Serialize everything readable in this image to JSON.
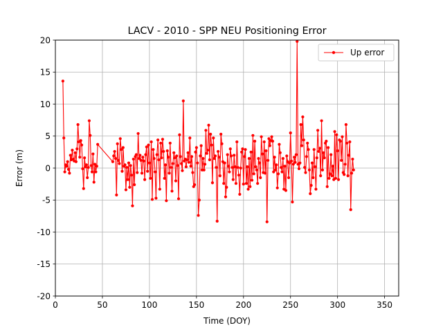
{
  "chart_data": {
    "type": "line",
    "title": "LACV - 2010 - SPP NEU Positioning Error",
    "xlabel": "Time (DOY)",
    "ylabel": "Error (m)",
    "xlim": [
      0,
      365
    ],
    "ylim": [
      -20,
      20
    ],
    "xticks": [
      0,
      50,
      100,
      150,
      200,
      250,
      300,
      350
    ],
    "yticks": [
      -20,
      -15,
      -10,
      -5,
      0,
      5,
      10,
      15,
      20
    ],
    "grid": true,
    "legend_position": "top-right",
    "series": [
      {
        "name": "Up error",
        "color": "#ff0000",
        "marker": "circle",
        "points": [
          [
            8,
            13.6
          ],
          [
            9,
            4.7
          ],
          [
            10,
            -0.6
          ],
          [
            11,
            0.5
          ],
          [
            12,
            0.3
          ],
          [
            13,
            1.0
          ],
          [
            14,
            -0.2
          ],
          [
            15,
            -0.8
          ],
          [
            16,
            2.0
          ],
          [
            17,
            1.3
          ],
          [
            18,
            2.8
          ],
          [
            19,
            1.4
          ],
          [
            20,
            1.1
          ],
          [
            21,
            2.4
          ],
          [
            22,
            1.0
          ],
          [
            23,
            3.0
          ],
          [
            24,
            6.8
          ],
          [
            25,
            4.1
          ],
          [
            26,
            1.7
          ],
          [
            27,
            4.3
          ],
          [
            28,
            3.6
          ],
          [
            29,
            -0.1
          ],
          [
            30,
            -3.2
          ],
          [
            31,
            1.6
          ],
          [
            32,
            0.2
          ],
          [
            33,
            0.5
          ],
          [
            34,
            -1.5
          ],
          [
            35,
            0.1
          ],
          [
            36,
            7.4
          ],
          [
            37,
            5.1
          ],
          [
            38,
            0.4
          ],
          [
            39,
            -0.6
          ],
          [
            40,
            2.2
          ],
          [
            41,
            -2.2
          ],
          [
            42,
            0.6
          ],
          [
            43,
            -0.6
          ],
          [
            44,
            0.3
          ],
          [
            45,
            3.7
          ],
          [
            61,
            1.0
          ],
          [
            62,
            1.9
          ],
          [
            63,
            2.6
          ],
          [
            64,
            1.5
          ],
          [
            65,
            -4.2
          ],
          [
            66,
            3.8
          ],
          [
            67,
            1.2
          ],
          [
            68,
            0.7
          ],
          [
            69,
            4.6
          ],
          [
            70,
            2.9
          ],
          [
            71,
            -0.5
          ],
          [
            72,
            3.2
          ],
          [
            73,
            0.3
          ],
          [
            74,
            0.5
          ],
          [
            75,
            -3.4
          ],
          [
            76,
            0.1
          ],
          [
            77,
            -1.8
          ],
          [
            78,
            0.8
          ],
          [
            79,
            -3.0
          ],
          [
            80,
            0.4
          ],
          [
            81,
            -1.1
          ],
          [
            82,
            -5.9
          ],
          [
            83,
            1.4
          ],
          [
            84,
            -2.6
          ],
          [
            85,
            1.8
          ],
          [
            86,
            2.1
          ],
          [
            87,
            -0.7
          ],
          [
            88,
            5.4
          ],
          [
            89,
            1.5
          ],
          [
            90,
            2.0
          ],
          [
            91,
            1.2
          ],
          [
            92,
            -0.8
          ],
          [
            93,
            1.7
          ],
          [
            94,
            1.1
          ],
          [
            95,
            -1.8
          ],
          [
            96,
            2.1
          ],
          [
            97,
            3.3
          ],
          [
            98,
            -0.5
          ],
          [
            99,
            3.6
          ],
          [
            100,
            0.8
          ],
          [
            101,
            -1.6
          ],
          [
            102,
            4.1
          ],
          [
            103,
            -4.9
          ],
          [
            104,
            2.9
          ],
          [
            105,
            1.5
          ],
          [
            106,
            -0.6
          ],
          [
            107,
            -4.7
          ],
          [
            108,
            2.1
          ],
          [
            109,
            4.4
          ],
          [
            110,
            1.3
          ],
          [
            111,
            -3.3
          ],
          [
            112,
            3.9
          ],
          [
            113,
            1.6
          ],
          [
            114,
            4.5
          ],
          [
            115,
            2.6
          ],
          [
            116,
            -1.6
          ],
          [
            117,
            0.5
          ],
          [
            118,
            -5.1
          ],
          [
            119,
            2.7
          ],
          [
            120,
            1.7
          ],
          [
            121,
            -0.8
          ],
          [
            122,
            3.9
          ],
          [
            123,
            0.1
          ],
          [
            124,
            -3.6
          ],
          [
            125,
            0.7
          ],
          [
            126,
            2.4
          ],
          [
            127,
            1.6
          ],
          [
            128,
            -2.0
          ],
          [
            129,
            1.9
          ],
          [
            130,
            0.4
          ],
          [
            131,
            -4.8
          ],
          [
            132,
            5.2
          ],
          [
            133,
            1.8
          ],
          [
            134,
            0.7
          ],
          [
            135,
            -0.4
          ],
          [
            136,
            10.5
          ],
          [
            137,
            1.1
          ],
          [
            138,
            1.4
          ],
          [
            139,
            0.2
          ],
          [
            140,
            1.3
          ],
          [
            141,
            2.4
          ],
          [
            142,
            0.9
          ],
          [
            143,
            4.7
          ],
          [
            144,
            0.3
          ],
          [
            145,
            1.8
          ],
          [
            146,
            -0.7
          ],
          [
            147,
            -2.9
          ],
          [
            148,
            -2.6
          ],
          [
            149,
            2.5
          ],
          [
            150,
            3.2
          ],
          [
            151,
            0.8
          ],
          [
            152,
            -7.4
          ],
          [
            153,
            -5.0
          ],
          [
            154,
            1.9
          ],
          [
            155,
            3.5
          ],
          [
            156,
            -0.3
          ],
          [
            157,
            1.5
          ],
          [
            158,
            -0.3
          ],
          [
            159,
            0.6
          ],
          [
            160,
            5.9
          ],
          [
            161,
            2.3
          ],
          [
            162,
            2.8
          ],
          [
            163,
            6.7
          ],
          [
            164,
            1.3
          ],
          [
            165,
            5.3
          ],
          [
            166,
            3.6
          ],
          [
            167,
            -2.3
          ],
          [
            168,
            4.7
          ],
          [
            169,
            1.5
          ],
          [
            170,
            1.9
          ],
          [
            171,
            0.1
          ],
          [
            172,
            -8.3
          ],
          [
            173,
            2.6
          ],
          [
            174,
            1.7
          ],
          [
            175,
            -1.2
          ],
          [
            176,
            5.3
          ],
          [
            177,
            3.8
          ],
          [
            178,
            1.0
          ],
          [
            179,
            -2.4
          ],
          [
            180,
            0.8
          ],
          [
            181,
            -4.5
          ],
          [
            182,
            -3.0
          ],
          [
            183,
            2.1
          ],
          [
            184,
            0.3
          ],
          [
            185,
            -0.6
          ],
          [
            186,
            3.0
          ],
          [
            187,
            1.9
          ],
          [
            188,
            0.1
          ],
          [
            189,
            -1.8
          ],
          [
            190,
            2.0
          ],
          [
            191,
            0.2
          ],
          [
            192,
            -2.4
          ],
          [
            193,
            4.1
          ],
          [
            194,
            0.1
          ],
          [
            195,
            -1.1
          ],
          [
            196,
            -4.1
          ],
          [
            197,
            0.0
          ],
          [
            198,
            2.5
          ],
          [
            199,
            3.0
          ],
          [
            200,
            -2.5
          ],
          [
            201,
            1.8
          ],
          [
            202,
            2.9
          ],
          [
            203,
            -2.4
          ],
          [
            204,
            0.2
          ],
          [
            205,
            -3.3
          ],
          [
            206,
            1.5
          ],
          [
            207,
            -2.9
          ],
          [
            208,
            2.5
          ],
          [
            209,
            -1.9
          ],
          [
            210,
            5.1
          ],
          [
            211,
            -0.9
          ],
          [
            212,
            4.2
          ],
          [
            213,
            0.2
          ],
          [
            214,
            -0.3
          ],
          [
            215,
            -2.4
          ],
          [
            216,
            1.5
          ],
          [
            217,
            0.8
          ],
          [
            218,
            -1.5
          ],
          [
            219,
            4.9
          ],
          [
            220,
            2.2
          ],
          [
            221,
            -0.7
          ],
          [
            222,
            4.1
          ],
          [
            223,
            -0.8
          ],
          [
            224,
            2.7
          ],
          [
            225,
            -8.4
          ],
          [
            226,
            1.2
          ],
          [
            227,
            4.6
          ],
          [
            228,
            3.5
          ],
          [
            229,
            4.3
          ],
          [
            230,
            4.9
          ],
          [
            231,
            4.2
          ],
          [
            232,
            -0.6
          ],
          [
            233,
            1.7
          ],
          [
            234,
            -0.3
          ],
          [
            235,
            0.5
          ],
          [
            236,
            -3.1
          ],
          [
            237,
            -0.9
          ],
          [
            238,
            3.7
          ],
          [
            239,
            2.4
          ],
          [
            240,
            0.1
          ],
          [
            241,
            -0.6
          ],
          [
            242,
            1.5
          ],
          [
            243,
            -3.3
          ],
          [
            244,
            0.3
          ],
          [
            245,
            -3.5
          ],
          [
            246,
            1.9
          ],
          [
            247,
            1.0
          ],
          [
            248,
            -1.5
          ],
          [
            249,
            0.8
          ],
          [
            250,
            5.5
          ],
          [
            251,
            1.1
          ],
          [
            252,
            -5.3
          ],
          [
            253,
            0.6
          ],
          [
            254,
            1.7
          ],
          [
            255,
            0.9
          ],
          [
            256,
            2.1
          ],
          [
            257,
            19.8
          ],
          [
            258,
            0.6
          ],
          [
            259,
            -0.1
          ],
          [
            260,
            0.8
          ],
          [
            261,
            6.8
          ],
          [
            262,
            3.5
          ],
          [
            263,
            8.0
          ],
          [
            264,
            4.4
          ],
          [
            265,
            0.1
          ],
          [
            266,
            -0.7
          ],
          [
            267,
            1.8
          ],
          [
            268,
            3.9
          ],
          [
            269,
            2.9
          ],
          [
            270,
            -0.3
          ],
          [
            271,
            -4.0
          ],
          [
            272,
            -2.7
          ],
          [
            273,
            0.8
          ],
          [
            274,
            -1.5
          ],
          [
            275,
            2.9
          ],
          [
            276,
            0.2
          ],
          [
            277,
            -3.3
          ],
          [
            278,
            1.6
          ],
          [
            279,
            5.9
          ],
          [
            280,
            2.6
          ],
          [
            281,
            3.1
          ],
          [
            282,
            -1.2
          ],
          [
            283,
            7.4
          ],
          [
            284,
            -0.3
          ],
          [
            285,
            2.4
          ],
          [
            286,
            1.6
          ],
          [
            287,
            3.9
          ],
          [
            288,
            4.2
          ],
          [
            289,
            -2.9
          ],
          [
            290,
            3.2
          ],
          [
            291,
            -1.6
          ],
          [
            292,
            -0.9
          ],
          [
            293,
            2.1
          ],
          [
            294,
            -1.2
          ],
          [
            295,
            0.3
          ],
          [
            296,
            -1.8
          ],
          [
            297,
            5.7
          ],
          [
            298,
            -1.6
          ],
          [
            299,
            5.2
          ],
          [
            300,
            2.7
          ],
          [
            301,
            -1.8
          ],
          [
            302,
            4.4
          ],
          [
            303,
            4.2
          ],
          [
            304,
            1.2
          ],
          [
            305,
            4.9
          ],
          [
            306,
            -0.7
          ],
          [
            307,
            -1.0
          ],
          [
            308,
            0.6
          ],
          [
            309,
            6.8
          ],
          [
            310,
            3.9
          ],
          [
            311,
            -1.2
          ],
          [
            312,
            2.0
          ],
          [
            313,
            4.1
          ],
          [
            314,
            -6.5
          ],
          [
            315,
            -0.8
          ],
          [
            316,
            1.4
          ],
          [
            317,
            -0.3
          ]
        ]
      }
    ]
  },
  "legend": {
    "label": "Up error"
  }
}
